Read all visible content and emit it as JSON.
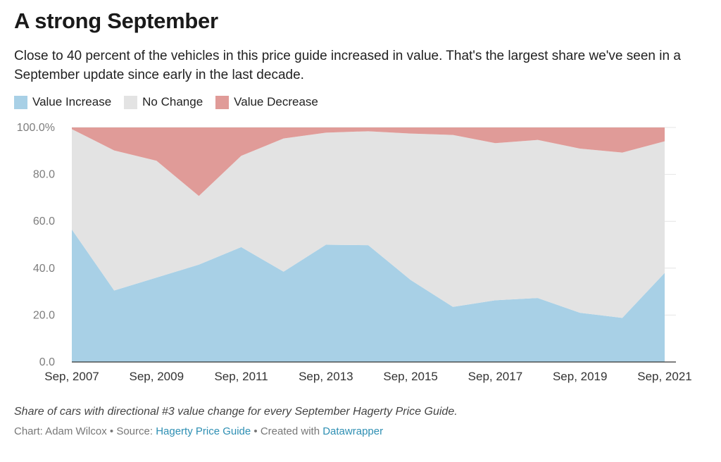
{
  "title": "A strong September",
  "subtitle": "Close to 40 percent of the vehicles in this price guide increased in value. That's the largest share we've seen in a September update since early in the last decade.",
  "colors": {
    "increase": "#a8d0e6",
    "no_change": "#e3e3e3",
    "decrease": "#e09b98"
  },
  "notes": "Share of cars with directional #3 value change for every September Hagerty Price Guide.",
  "byline": {
    "chart_by": "Chart: Adam Wilcox",
    "sep1": " • ",
    "source_label": "Source: ",
    "source_link": "Hagerty Price Guide",
    "sep2": " • ",
    "created_label": "Created with ",
    "created_link": "Datawrapper"
  },
  "chart_data": {
    "type": "area",
    "stacked": true,
    "categories": [
      "Sep, 2007",
      "Sep, 2008",
      "Sep, 2009",
      "Sep, 2010",
      "Sep, 2011",
      "Sep, 2012",
      "Sep, 2013",
      "Sep, 2014",
      "Sep, 2015",
      "Sep, 2016",
      "Sep, 2017",
      "Sep, 2018",
      "Sep, 2019",
      "Sep, 2020",
      "Sep, 2021"
    ],
    "x_tick_labels": [
      "Sep, 2007",
      "Sep, 2009",
      "Sep, 2011",
      "Sep, 2013",
      "Sep, 2015",
      "Sep, 2017",
      "Sep, 2019",
      "Sep, 2021"
    ],
    "y_ticks": [
      "0.0",
      "20.0",
      "40.0",
      "60.0",
      "80.0",
      "100.0%"
    ],
    "ylim": [
      0,
      100
    ],
    "series": [
      {
        "name": "Value Increase",
        "values": [
          56.5,
          30.5,
          36.0,
          41.5,
          49.0,
          38.5,
          50.0,
          49.8,
          35.0,
          23.5,
          26.3,
          27.3,
          21.0,
          18.8,
          38.0
        ]
      },
      {
        "name": "No Change",
        "values": [
          42.8,
          59.7,
          49.8,
          29.3,
          38.9,
          56.8,
          47.8,
          48.6,
          62.4,
          73.3,
          67.0,
          67.4,
          70.0,
          70.5,
          56.1
        ]
      },
      {
        "name": "Value Decrease",
        "values": [
          0.7,
          9.8,
          14.2,
          29.2,
          12.1,
          4.7,
          2.2,
          1.6,
          2.6,
          3.2,
          6.7,
          5.3,
          9.0,
          10.7,
          5.9
        ]
      }
    ],
    "grid": true,
    "legend": "top-left"
  }
}
